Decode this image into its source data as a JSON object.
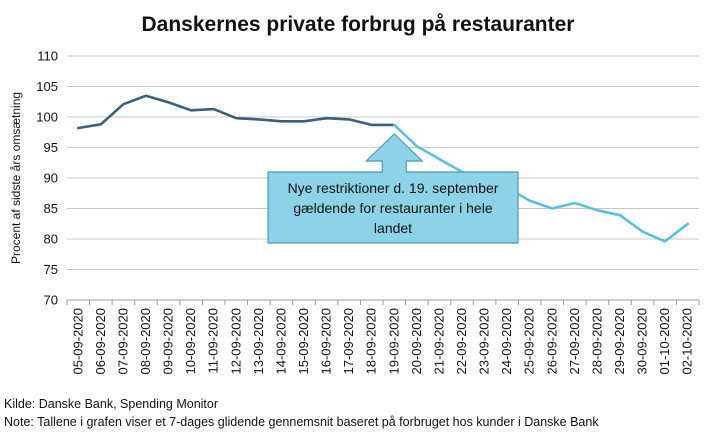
{
  "chart_data": {
    "type": "line",
    "title": "Danskernes private forbrug på restauranter",
    "ylabel": "Procent af sidste års omsætning",
    "xlabel": "",
    "ylim": [
      70,
      110
    ],
    "yticks": [
      70,
      75,
      80,
      85,
      90,
      95,
      100,
      105,
      110
    ],
    "grid": true,
    "categories": [
      "05-09-2020",
      "06-09-2020",
      "07-09-2020",
      "08-09-2020",
      "09-09-2020",
      "10-09-2020",
      "11-09-2020",
      "12-09-2020",
      "13-09-2020",
      "14-09-2020",
      "15-09-2020",
      "16-09-2020",
      "17-09-2020",
      "18-09-2020",
      "19-09-2020",
      "20-09-2020",
      "21-09-2020",
      "22-09-2020",
      "23-09-2020",
      "24-09-2020",
      "25-09-2020",
      "26-09-2020",
      "27-09-2020",
      "28-09-2020",
      "29-09-2020",
      "30-09-2020",
      "01-10-2020",
      "02-10-2020"
    ],
    "series": [
      {
        "color": "#3a5f7f",
        "values": [
          98.2,
          98.8,
          102.1,
          103.5,
          102.4,
          101.1,
          101.3,
          99.8,
          99.6,
          99.3,
          99.3,
          99.8,
          99.6,
          98.7,
          98.7,
          null,
          null,
          null,
          null,
          null,
          null,
          null,
          null,
          null,
          null,
          null,
          null,
          null
        ]
      },
      {
        "color": "#5bc0e0",
        "values": [
          null,
          null,
          null,
          null,
          null,
          null,
          null,
          null,
          null,
          null,
          null,
          null,
          null,
          null,
          98.7,
          95.2,
          93.1,
          91.0,
          89.7,
          88.4,
          86.3,
          85.0,
          85.9,
          84.7,
          83.9,
          81.2,
          79.6,
          82.5
        ]
      }
    ],
    "annotation": {
      "text_lines": [
        "Nye restriktioner d. 19. september",
        "gældende for restauranter i hele",
        "landet"
      ],
      "points_to": "19-09-2020",
      "fill": "#8dd3e8",
      "border": "#4a9cb5"
    }
  },
  "footer": {
    "source": "Kilde: Danske Bank, Spending Monitor",
    "note": "Note: Tallene i grafen viser et 7-dages glidende gennemsnit baseret på forbruget hos kunder i Danske Bank"
  }
}
